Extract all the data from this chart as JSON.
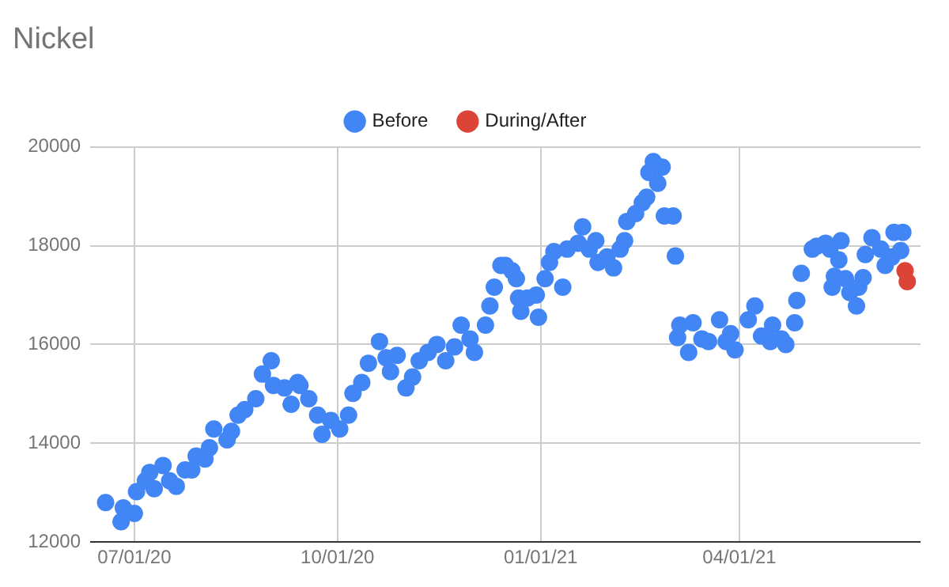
{
  "chart_data": {
    "type": "scatter",
    "title": "Nickel",
    "legend": "top",
    "grid": true,
    "marker": "circle",
    "xlim": [
      "2020-06-11",
      "2021-06-22"
    ],
    "xticks": [
      {
        "value": "2020-07-01",
        "label": "07/01/20"
      },
      {
        "value": "2020-10-01",
        "label": "10/01/20"
      },
      {
        "value": "2021-01-01",
        "label": "01/01/21"
      },
      {
        "value": "2021-04-01",
        "label": "04/01/21"
      }
    ],
    "ylim": [
      12000,
      20000
    ],
    "yticks": [
      12000,
      14000,
      16000,
      18000,
      20000
    ],
    "series": [
      {
        "name": "Before",
        "color": "#4285f4",
        "x": [
          "2020-06-18",
          "2020-06-25",
          "2020-06-26",
          "2020-07-01",
          "2020-07-02",
          "2020-07-06",
          "2020-07-08",
          "2020-07-10",
          "2020-07-14",
          "2020-07-17",
          "2020-07-20",
          "2020-07-24",
          "2020-07-27",
          "2020-07-29",
          "2020-08-02",
          "2020-08-04",
          "2020-08-06",
          "2020-08-12",
          "2020-08-14",
          "2020-08-17",
          "2020-08-20",
          "2020-08-25",
          "2020-08-28",
          "2020-09-01",
          "2020-09-02",
          "2020-09-07",
          "2020-09-10",
          "2020-09-13",
          "2020-09-14",
          "2020-09-18",
          "2020-09-22",
          "2020-09-24",
          "2020-09-28",
          "2020-10-02",
          "2020-10-06",
          "2020-10-08",
          "2020-10-12",
          "2020-10-15",
          "2020-10-20",
          "2020-10-23",
          "2020-10-25",
          "2020-10-28",
          "2020-11-01",
          "2020-11-04",
          "2020-11-07",
          "2020-11-11",
          "2020-11-15",
          "2020-11-19",
          "2020-11-23",
          "2020-11-26",
          "2020-11-30",
          "2020-12-02",
          "2020-12-07",
          "2020-12-09",
          "2020-12-11",
          "2020-12-14",
          "2020-12-16",
          "2020-12-19",
          "2020-12-21",
          "2020-12-22",
          "2020-12-23",
          "2020-12-26",
          "2020-12-30",
          "2020-12-31",
          "2021-01-03",
          "2021-01-05",
          "2021-01-07",
          "2021-01-11",
          "2021-01-13",
          "2021-01-18",
          "2021-01-20",
          "2021-01-23",
          "2021-01-26",
          "2021-01-27",
          "2021-01-31",
          "2021-02-03",
          "2021-02-06",
          "2021-02-08",
          "2021-02-09",
          "2021-02-13",
          "2021-02-16",
          "2021-02-18",
          "2021-02-19",
          "2021-02-21",
          "2021-02-23",
          "2021-02-25",
          "2021-02-26",
          "2021-03-02",
          "2021-03-03",
          "2021-03-04",
          "2021-03-05",
          "2021-03-09",
          "2021-03-11",
          "2021-03-15",
          "2021-03-18",
          "2021-03-23",
          "2021-03-26",
          "2021-03-28",
          "2021-03-30",
          "2021-04-05",
          "2021-04-08",
          "2021-04-11",
          "2021-04-15",
          "2021-04-16",
          "2021-04-20",
          "2021-04-22",
          "2021-04-26",
          "2021-04-27",
          "2021-04-29",
          "2021-05-04",
          "2021-05-06",
          "2021-05-10",
          "2021-05-12",
          "2021-05-13",
          "2021-05-14",
          "2021-05-16",
          "2021-05-17",
          "2021-05-19",
          "2021-05-21",
          "2021-05-24",
          "2021-05-25",
          "2021-05-27",
          "2021-05-28",
          "2021-05-31",
          "2021-06-04",
          "2021-06-06",
          "2021-06-09",
          "2021-06-10",
          "2021-06-13",
          "2021-06-14"
        ],
        "values": [
          12800,
          12410,
          12690,
          12580,
          13020,
          13240,
          13410,
          13080,
          13550,
          13240,
          13130,
          13460,
          13460,
          13740,
          13680,
          13910,
          14290,
          14070,
          14240,
          14570,
          14680,
          14900,
          15400,
          15670,
          15170,
          15120,
          14790,
          15230,
          15170,
          14900,
          14570,
          14180,
          14460,
          14290,
          14570,
          15010,
          15230,
          15620,
          16060,
          15730,
          15450,
          15780,
          15120,
          15340,
          15670,
          15840,
          16000,
          15670,
          15950,
          16390,
          16110,
          15840,
          16390,
          16780,
          17160,
          17600,
          17600,
          17490,
          17330,
          16940,
          16670,
          16940,
          17000,
          16550,
          17330,
          17660,
          17880,
          17160,
          17930,
          18050,
          18380,
          17930,
          18100,
          17660,
          17770,
          17550,
          17930,
          18100,
          18490,
          18650,
          18870,
          18980,
          19480,
          19700,
          19260,
          19590,
          18600,
          18600,
          17790,
          16140,
          16390,
          15840,
          16440,
          16110,
          16060,
          16500,
          16060,
          16220,
          15890,
          16500,
          16780,
          16170,
          16060,
          16390,
          16110,
          16000,
          16440,
          16890,
          17440,
          17930,
          17990,
          18050,
          17930,
          17160,
          17380,
          17710,
          18100,
          17330,
          17050,
          16780,
          17160,
          17350,
          17820,
          18160,
          17930,
          17600,
          17770,
          18270,
          17900,
          18270
        ]
      },
      {
        "name": "During/After",
        "color": "#db4437",
        "x": [
          "2021-06-15",
          "2021-06-16"
        ],
        "values": [
          17490,
          17270
        ]
      }
    ]
  }
}
